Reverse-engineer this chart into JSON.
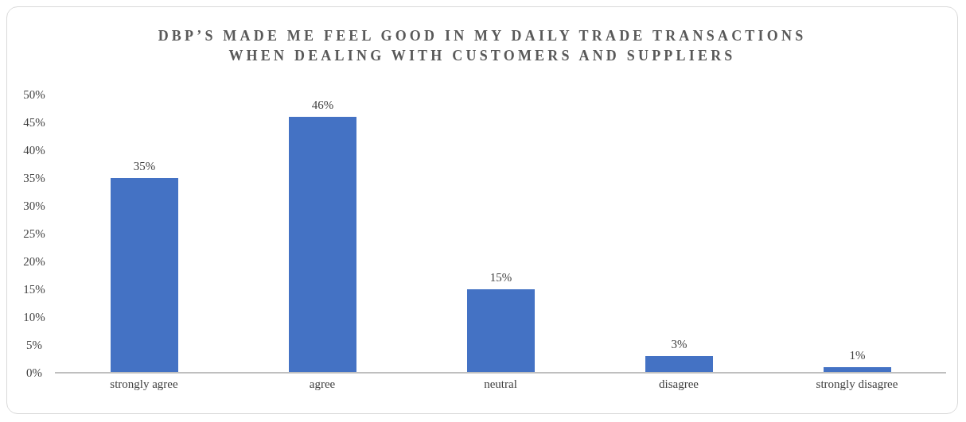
{
  "chart_data": {
    "type": "bar",
    "title": "DBP’S MADE ME FEEL GOOD IN MY DAILY TRADE TRANSACTIONS WHEN DEALING WITH CUSTOMERS AND SUPPLIERS",
    "categories": [
      "strongly agree",
      "agree",
      "neutral",
      "disagree",
      "strongly disagree"
    ],
    "values": [
      35,
      46,
      15,
      3,
      1
    ],
    "value_labels": [
      "35%",
      "46%",
      "15%",
      "3%",
      "1%"
    ],
    "color": "#4472c4",
    "ylim": [
      0,
      50
    ],
    "yticks": [
      {
        "value": 0,
        "label": "0%"
      },
      {
        "value": 5,
        "label": "5%"
      },
      {
        "value": 10,
        "label": "10%"
      },
      {
        "value": 15,
        "label": "15%"
      },
      {
        "value": 20,
        "label": "20%"
      },
      {
        "value": 25,
        "label": "25%"
      },
      {
        "value": 30,
        "label": "30%"
      },
      {
        "value": 35,
        "label": "35%"
      },
      {
        "value": 40,
        "label": "40%"
      },
      {
        "value": 45,
        "label": "45%"
      },
      {
        "value": 50,
        "label": "50%"
      }
    ],
    "grid": false,
    "legend": false
  }
}
